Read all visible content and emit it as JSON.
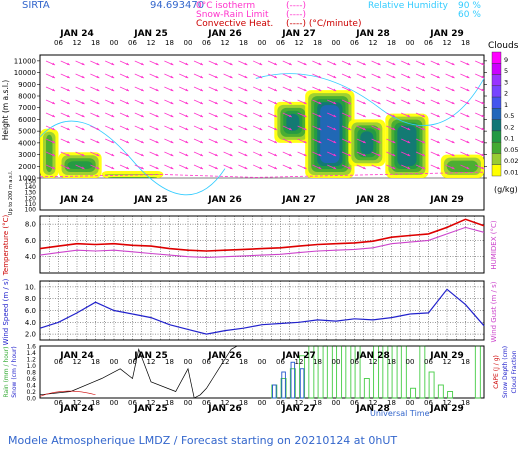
{
  "header": {
    "station": "SIRTA",
    "coords": "94.693470",
    "legend_left": [
      {
        "label": "0°C isotherm",
        "sample": "(----)",
        "color": "#ff33cc"
      },
      {
        "label": "Snow-Rain Limit",
        "sample": "(----)",
        "color": "#ff33cc"
      },
      {
        "label": "Convective Heat.",
        "sample": "(----) (°C/minute)",
        "color": "#cc0000"
      }
    ],
    "legend_right": [
      {
        "label": "Relative Humidity",
        "value": "90 %",
        "color": "#33ccff"
      },
      {
        "label": "",
        "value": "60 %",
        "color": "#33ccff"
      }
    ]
  },
  "time_axis": {
    "day_labels": [
      "JAN 24",
      "JAN 25",
      "JAN 26",
      "JAN 27",
      "JAN 28",
      "JAN 29"
    ],
    "hour_labels": [
      "06",
      "12",
      "18",
      "00"
    ],
    "xlabel": "Universal Time",
    "x_range_hours": [
      0,
      144
    ]
  },
  "side_labels": {
    "height_upper": "Height (m a.s.l.)",
    "height_lower": "Up to 200 m a.s.l.",
    "temperature": "Temperature (°C)",
    "humidex": "HUMIDEX (°C)",
    "wind_speed": "Wind Speed (m / s)",
    "wind_gust": "Wind Gust (m / s)",
    "rain": "Rain (mm / hour)",
    "snow": "Snow (cm / hour)",
    "cape": "CAPE (J / g)",
    "snow_depth": "Snow Depth (cm)",
    "cloud_fraction": "Cloud Fraction"
  },
  "colorbar": {
    "title": "Clouds",
    "unit": "(g/kg)",
    "levels": [
      "9",
      "5",
      "3",
      "2",
      "1",
      "0.5",
      "0.2",
      "0.1",
      "0.05",
      "0.02",
      "0.01"
    ],
    "colors": [
      "#ff00ff",
      "#cc00ff",
      "#9933ff",
      "#7744ff",
      "#4455ee",
      "#2266bb",
      "#117777",
      "#229944",
      "#44aa33",
      "#99cc33",
      "#ffff00"
    ]
  },
  "footer": "Modele Atmospherique LMDZ / Forecast starting on 20210124 at 0hUT",
  "chart_data": [
    {
      "type": "heatmap",
      "name": "cloud_water",
      "ylabel": "Height (m a.s.l.)",
      "yticks": [
        "11000",
        "10000",
        "9000",
        "8000",
        "7000",
        "6000",
        "5000",
        "4000",
        "3000",
        "2000",
        "1000"
      ],
      "yticks_low": [
        "150",
        "140",
        "130",
        "120",
        "110",
        "100"
      ],
      "ylim": [
        1000,
        11500
      ],
      "cloud_blobs": [
        {
          "t0": 0,
          "t1": 6,
          "h0": 1000,
          "h1": 5200,
          "level": 0.05
        },
        {
          "t0": 6,
          "t1": 20,
          "h0": 1000,
          "h1": 3200,
          "level": 0.1
        },
        {
          "t0": 20,
          "t1": 40,
          "h0": 1000,
          "h1": 1600,
          "level": 0.05
        },
        {
          "t0": 76,
          "t1": 88,
          "h0": 4000,
          "h1": 7500,
          "level": 0.2
        },
        {
          "t0": 86,
          "t1": 102,
          "h0": 1000,
          "h1": 8500,
          "level": 0.5
        },
        {
          "t0": 100,
          "t1": 112,
          "h0": 2000,
          "h1": 6000,
          "level": 0.2
        },
        {
          "t0": 112,
          "t1": 126,
          "h0": 1000,
          "h1": 6500,
          "level": 0.2
        },
        {
          "t0": 130,
          "t1": 144,
          "h0": 1000,
          "h1": 3000,
          "level": 0.05
        }
      ]
    },
    {
      "type": "line",
      "name": "temperature",
      "ylabel": "Temperature (°C)",
      "yticks": [
        "8.0",
        "6.0",
        "4.0"
      ],
      "ylim": [
        2.0,
        9.0
      ],
      "x": [
        0,
        6,
        12,
        18,
        24,
        30,
        36,
        42,
        48,
        54,
        60,
        66,
        72,
        78,
        84,
        90,
        96,
        102,
        108,
        114,
        120,
        126,
        132,
        138,
        144
      ],
      "series": [
        {
          "name": "Temperature",
          "color": "#dd0000",
          "values": [
            5.0,
            5.3,
            5.6,
            5.5,
            5.6,
            5.4,
            5.3,
            5.0,
            4.8,
            4.7,
            4.8,
            4.9,
            5.0,
            5.1,
            5.3,
            5.5,
            5.6,
            5.7,
            5.9,
            6.4,
            6.6,
            6.8,
            7.6,
            8.6,
            7.8
          ]
        },
        {
          "name": "Humidex",
          "color": "#cc44cc",
          "values": [
            4.2,
            4.5,
            4.8,
            4.7,
            4.8,
            4.6,
            4.4,
            4.2,
            4.0,
            3.9,
            4.0,
            4.1,
            4.2,
            4.3,
            4.5,
            4.7,
            4.8,
            4.9,
            5.1,
            5.6,
            5.8,
            6.0,
            6.8,
            7.6,
            7.0
          ]
        }
      ]
    },
    {
      "type": "line",
      "name": "wind",
      "ylabel": "Wind Speed (m / s)",
      "yticks": [
        "10.",
        "8.0",
        "6.0",
        "4.0",
        "2.0"
      ],
      "ylim": [
        1.0,
        11.0
      ],
      "x": [
        0,
        6,
        12,
        18,
        24,
        30,
        36,
        42,
        48,
        54,
        60,
        66,
        72,
        78,
        84,
        90,
        96,
        102,
        108,
        114,
        120,
        126,
        132,
        138,
        144
      ],
      "series": [
        {
          "name": "Wind Speed",
          "color": "#2222cc",
          "values": [
            3.0,
            4.0,
            5.6,
            7.4,
            6.0,
            5.4,
            4.8,
            3.6,
            2.8,
            2.0,
            2.6,
            3.0,
            3.6,
            3.8,
            4.0,
            4.4,
            4.2,
            4.6,
            4.4,
            4.8,
            5.4,
            5.6,
            9.6,
            7.0,
            3.4
          ]
        }
      ]
    },
    {
      "type": "bar",
      "name": "precipitation",
      "ylabel": "Rain (mm / hour)",
      "yticks": [
        "1.6",
        "1.4",
        "1.2",
        "1.0",
        "0.8",
        "0.6",
        "0.4",
        "0.2",
        "0.0"
      ],
      "ylim": [
        0,
        1.6
      ],
      "rain_bars": [
        {
          "t": 76,
          "v": 0.4
        },
        {
          "t": 79,
          "v": 0.6
        },
        {
          "t": 82,
          "v": 0.9
        },
        {
          "t": 85,
          "v": 1.3
        },
        {
          "t": 88,
          "v": 1.6
        },
        {
          "t": 91,
          "v": 1.6
        },
        {
          "t": 94,
          "v": 1.6
        },
        {
          "t": 97,
          "v": 1.6
        },
        {
          "t": 100,
          "v": 1.6
        },
        {
          "t": 103,
          "v": 1.6
        },
        {
          "t": 106,
          "v": 0.6
        },
        {
          "t": 109,
          "v": 1.6
        },
        {
          "t": 112,
          "v": 1.6
        },
        {
          "t": 115,
          "v": 1.6
        },
        {
          "t": 118,
          "v": 1.6
        },
        {
          "t": 121,
          "v": 0.3
        },
        {
          "t": 124,
          "v": 1.6
        },
        {
          "t": 127,
          "v": 0.8
        },
        {
          "t": 130,
          "v": 0.4
        },
        {
          "t": 133,
          "v": 0.2
        },
        {
          "t": 142,
          "v": 1.6
        }
      ],
      "snow_bars": [
        {
          "t": 76,
          "v": 0.4
        },
        {
          "t": 79,
          "v": 0.8
        },
        {
          "t": 82,
          "v": 1.1
        },
        {
          "t": 85,
          "v": 0.9
        }
      ],
      "cape_line": {
        "x": [
          0,
          10,
          20,
          26,
          30,
          32,
          36,
          44,
          48,
          50,
          52,
          54,
          56,
          58,
          60,
          62,
          64,
          66,
          70,
          80,
          90,
          100,
          110,
          120,
          130,
          140,
          144
        ],
        "values": [
          0.1,
          0.2,
          0.6,
          0.9,
          0.6,
          1.5,
          0.5,
          0.2,
          0.9,
          0.0,
          0.1,
          0.3,
          0.6,
          0.9,
          1.2,
          1.5,
          1.6,
          1.6,
          1.6,
          1.6,
          1.6,
          1.6,
          1.6,
          1.6,
          1.6,
          1.6,
          1.6
        ]
      }
    }
  ]
}
